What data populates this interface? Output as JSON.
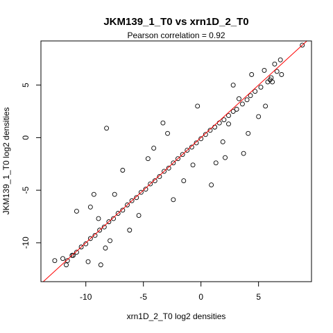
{
  "chart_data": {
    "type": "scatter",
    "title": "JKM139_1_T0 vs xrn1D_2_T0",
    "subtitle": "Pearson correlation =  0.92",
    "xlabel": "xrn1D_2_T0 log2 densities",
    "ylabel": "JKM139_1_T0 log2 densities",
    "xlim": [
      -13.9,
      9.6
    ],
    "ylim": [
      -13.7,
      9.2
    ],
    "x_ticks": [
      -10,
      -5,
      0,
      5
    ],
    "y_ticks": [
      -10,
      -5,
      0,
      5
    ],
    "x_tick_labels": [
      "-10",
      "-5",
      "0",
      "5"
    ],
    "y_tick_labels": [
      "-10",
      "-5",
      "0",
      "5"
    ],
    "reference_line": {
      "type": "y=x",
      "color": "#ff0000"
    },
    "point_color": "#000000",
    "marker": "open-circle",
    "grid": false,
    "series": [
      {
        "x": [
          8.8,
          6.9,
          6.4,
          7.0,
          6.6,
          6.1,
          5.8,
          5.2,
          4.7,
          4.3,
          5.5,
          6.2,
          4.0,
          3.6,
          3.1,
          2.8,
          2.4,
          2.0,
          1.6,
          1.2,
          0.8,
          0.4,
          0.0,
          -0.4,
          -0.8,
          -1.2,
          -1.6,
          -2.0,
          -2.4,
          -2.8,
          -3.2,
          -3.6,
          -4.0,
          -4.4,
          -4.8,
          -5.2,
          -5.6,
          -6.0,
          -6.4,
          -6.8,
          -7.2,
          -7.6,
          -8.0,
          -8.4,
          -8.8,
          -9.2,
          -9.6,
          -10.0,
          -10.4,
          -10.8,
          -11.2,
          -11.6,
          -12.0,
          -12.7,
          -11.7,
          -11.1,
          -9.8,
          -8.7,
          -8.3,
          -7.9,
          -8.2,
          -10.8,
          -9.6,
          -3.3,
          2.8,
          1.3,
          -1.5,
          3.7,
          4.4,
          2.4,
          -6.8,
          -7.5,
          -5.4,
          -4.6,
          -2.4,
          -0.7,
          0.9,
          1.9,
          3.3,
          5.0,
          5.6,
          6.0,
          4.1,
          2.1,
          -0.3,
          -2.9,
          -4.1,
          -6.2,
          -8.9,
          -9.3
        ],
        "y": [
          8.8,
          7.4,
          7.0,
          6.0,
          6.3,
          5.7,
          5.3,
          4.8,
          4.4,
          4.0,
          6.4,
          5.3,
          3.6,
          3.2,
          2.7,
          2.5,
          2.1,
          1.7,
          1.4,
          1.0,
          0.7,
          0.3,
          -0.1,
          -0.5,
          -0.9,
          -1.2,
          -1.6,
          -2.0,
          -2.4,
          -2.9,
          -3.2,
          -3.7,
          -4.1,
          -4.4,
          -4.9,
          -5.2,
          -5.7,
          -6.0,
          -6.4,
          -6.9,
          -7.2,
          -7.7,
          -8.0,
          -8.5,
          -8.8,
          -9.3,
          -9.6,
          -10.1,
          -10.4,
          -10.9,
          -11.2,
          -11.7,
          -11.5,
          -11.7,
          -12.1,
          -11.2,
          -11.8,
          -12.1,
          -10.5,
          -9.8,
          0.9,
          -7.0,
          -6.6,
          1.4,
          5.0,
          -2.4,
          -4.1,
          -1.5,
          6.0,
          1.3,
          -3.1,
          -5.4,
          -7.4,
          -2.0,
          -5.9,
          -2.6,
          -4.5,
          -0.4,
          3.7,
          2.0,
          3.0,
          5.5,
          0.4,
          -1.9,
          3.0,
          0.4,
          -1.0,
          -8.8,
          -7.7,
          -5.4
        ]
      }
    ]
  }
}
